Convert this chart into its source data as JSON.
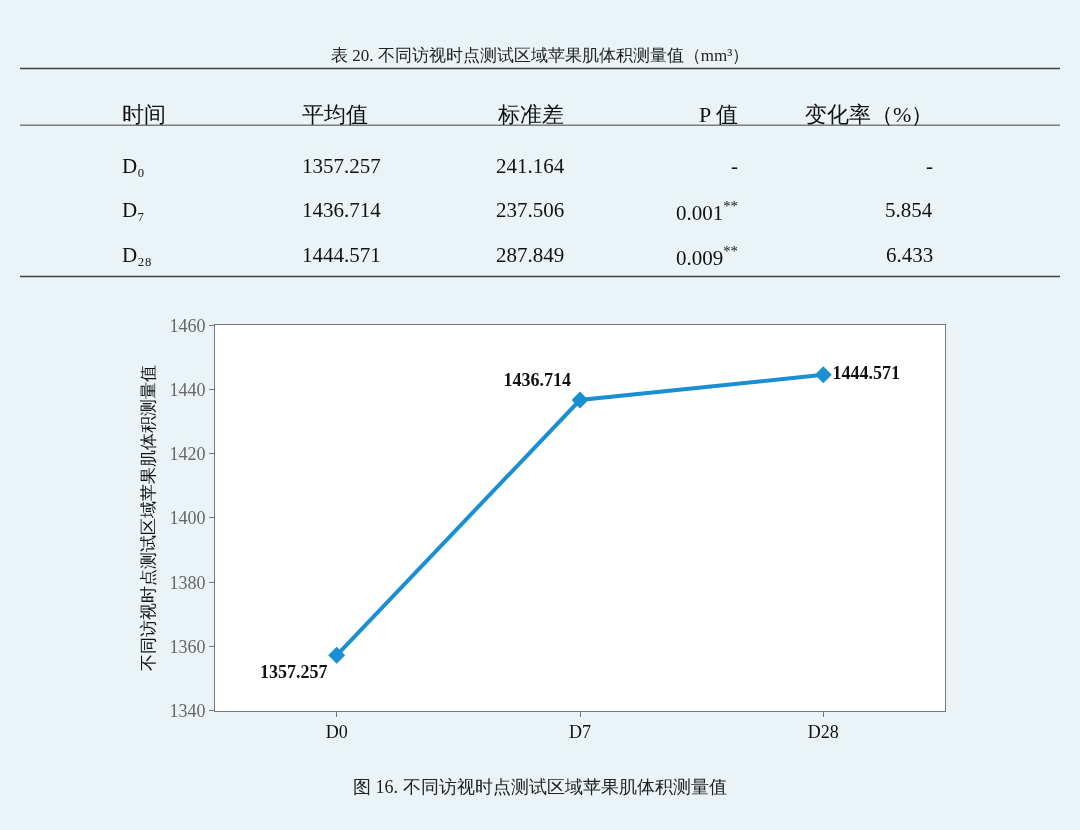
{
  "chart_data": [
    {
      "type": "other",
      "title": "表 20. 不同访视时点测试区域苹果肌体积测量值（mm³）",
      "categories": [
        "时间",
        "平均值",
        "标准差",
        "P 值",
        "变化率（%）"
      ],
      "annotations": [
        "D₀",
        "1357.257",
        "241.164",
        "-",
        "-",
        "D₇",
        "1436.714",
        "237.506",
        "0.001$^{**}$",
        "5.854",
        "D₂₈",
        "1444.571",
        "287.849",
        "0.009$^{**}$",
        "6.433"
      ]
    },
    {
      "type": "line",
      "categories": [
        "D0",
        "D7",
        "D28"
      ],
      "series": [
        {
          "color": "#1a8fd2",
          "values": [
            1357.257,
            1436.714,
            1444.571
          ]
        }
      ],
      "ylabel": "不同访视时点测试区域苹果肌体积测量值",
      "ylim": [
        1340,
        1460
      ],
      "yticks": [
        1340,
        1360,
        1380,
        1400,
        1420,
        1440,
        1460
      ],
      "data_labels": true,
      "marker": "diamond",
      "grid": false,
      "annotations": [
        "图 16. 不同访视时点测试区域苹果肌体积测量值"
      ]
    }
  ]
}
